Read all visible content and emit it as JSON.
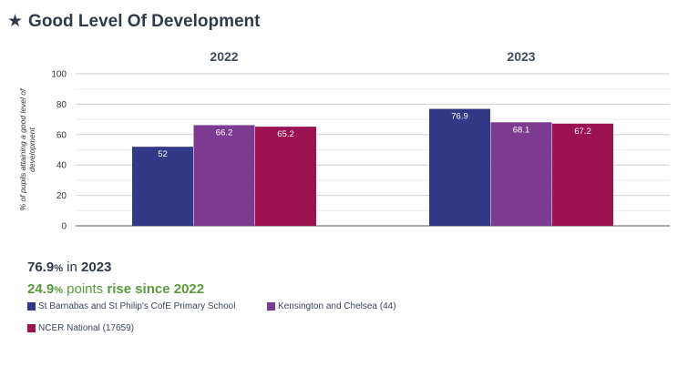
{
  "title": "Good Level Of Development",
  "title_icon": "star-icon",
  "summary": {
    "current_value": "76.9",
    "current_unit": "%",
    "current_text_mid": "in",
    "current_year": "2023",
    "change_value": "24.9",
    "change_unit": "%",
    "change_text_mid": "points",
    "change_text_end": "rise since 2022"
  },
  "colors": {
    "school": "#323a87",
    "local_authority": "#7d3a91",
    "national": "#9c1150",
    "summary_change": "#5a9a3c"
  },
  "chart_data": {
    "type": "bar",
    "categories": [
      "2022",
      "2023"
    ],
    "ylabel": "% of pupils attaining a good level of development",
    "ylim": [
      0,
      100
    ],
    "yticks": [
      0,
      20,
      40,
      60,
      80,
      100
    ],
    "grid": true,
    "legend_position": "bottom",
    "series": [
      {
        "name": "St Barnabas and St Philip's CofE Primary School",
        "values": [
          52,
          76.9
        ],
        "labels": [
          "52",
          "76.9"
        ],
        "color": "#323a87"
      },
      {
        "name": "Kensington and Chelsea (44)",
        "values": [
          66.2,
          68.1
        ],
        "labels": [
          "66.2",
          "68.1"
        ],
        "color": "#7d3a91"
      },
      {
        "name": "NCER National (17659)",
        "values": [
          65.2,
          67.2
        ],
        "labels": [
          "65.2",
          "67.2"
        ],
        "color": "#9c1150"
      }
    ]
  }
}
